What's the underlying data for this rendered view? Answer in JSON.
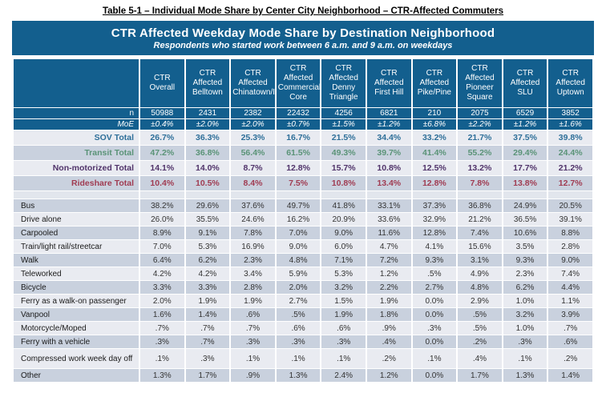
{
  "page_title": "Table 5-1 – Individual Mode Share by Center City Neighborhood – CTR-Affected Commuters",
  "banner": {
    "title": "CTR Affected Weekday Mode Share by Destination Neighborhood",
    "subtitle": "Respondents who started work between 6 a.m. and 9 a.m. on weekdays"
  },
  "colors": {
    "header_blue": "#135F8E",
    "row_light": "#E9EBF1",
    "row_dark": "#C9D1DE",
    "sov_total": "#2E6F99",
    "transit_total": "#5A9377",
    "non_motorized_total": "#50336A",
    "rideshare_total": "#A03C52"
  },
  "chart_data": {
    "type": "table",
    "columns": [
      "CTR Overall",
      "CTR Affected Belltown",
      "CTR Affected Chinatown/ID",
      "CTR Affected Commercial Core",
      "CTR Affected Denny Triangle",
      "CTR Affected First Hill",
      "CTR Affected Pike/Pine",
      "CTR Affected Pioneer Square",
      "CTR Affected SLU",
      "CTR Affected Uptown"
    ],
    "stat_rows": [
      {
        "label": "n",
        "values": [
          "50988",
          "2431",
          "2382",
          "22432",
          "4256",
          "6821",
          "210",
          "2075",
          "6529",
          "3852"
        ]
      },
      {
        "label": "MoE",
        "italic": true,
        "values": [
          "±0.4%",
          "±2.0%",
          "±2.0%",
          "±0.7%",
          "±1.5%",
          "±1.2%",
          "±6.8%",
          "±2.2%",
          "±1.2%",
          "±1.6%"
        ]
      }
    ],
    "total_rows": [
      {
        "label": "SOV Total",
        "color": "#2E6F99",
        "values": [
          "26.7%",
          "36.3%",
          "25.3%",
          "16.7%",
          "21.5%",
          "34.4%",
          "33.2%",
          "21.7%",
          "37.5%",
          "39.8%"
        ]
      },
      {
        "label": "Transit Total",
        "color": "#5A9377",
        "values": [
          "47.2%",
          "36.8%",
          "56.4%",
          "61.5%",
          "49.3%",
          "39.7%",
          "41.4%",
          "55.2%",
          "29.4%",
          "24.4%"
        ]
      },
      {
        "label": "Non-motorized Total",
        "color": "#50336A",
        "values": [
          "14.1%",
          "14.0%",
          "8.7%",
          "12.8%",
          "15.7%",
          "10.8%",
          "12.5%",
          "13.2%",
          "17.7%",
          "21.2%"
        ]
      },
      {
        "label": "Rideshare Total",
        "color": "#A03C52",
        "values": [
          "10.4%",
          "10.5%",
          "8.4%",
          "7.5%",
          "10.8%",
          "13.4%",
          "12.8%",
          "7.8%",
          "13.8%",
          "12.7%"
        ]
      }
    ],
    "mode_rows": [
      {
        "label": "Bus",
        "values": [
          "38.2%",
          "29.6%",
          "37.6%",
          "49.7%",
          "41.8%",
          "33.1%",
          "37.3%",
          "36.8%",
          "24.9%",
          "20.5%"
        ]
      },
      {
        "label": "Drive alone",
        "values": [
          "26.0%",
          "35.5%",
          "24.6%",
          "16.2%",
          "20.9%",
          "33.6%",
          "32.9%",
          "21.2%",
          "36.5%",
          "39.1%"
        ]
      },
      {
        "label": "Carpooled",
        "values": [
          "8.9%",
          "9.1%",
          "7.8%",
          "7.0%",
          "9.0%",
          "11.6%",
          "12.8%",
          "7.4%",
          "10.6%",
          "8.8%"
        ]
      },
      {
        "label": "Train/light rail/streetcar",
        "values": [
          "7.0%",
          "5.3%",
          "16.9%",
          "9.0%",
          "6.0%",
          "4.7%",
          "4.1%",
          "15.6%",
          "3.5%",
          "2.8%"
        ]
      },
      {
        "label": "Walk",
        "values": [
          "6.4%",
          "6.2%",
          "2.3%",
          "4.8%",
          "7.1%",
          "7.2%",
          "9.3%",
          "3.1%",
          "9.3%",
          "9.0%"
        ]
      },
      {
        "label": "Teleworked",
        "values": [
          "4.2%",
          "4.2%",
          "3.4%",
          "5.9%",
          "5.3%",
          "1.2%",
          ".5%",
          "4.9%",
          "2.3%",
          "7.4%"
        ]
      },
      {
        "label": "Bicycle",
        "values": [
          "3.3%",
          "3.3%",
          "2.8%",
          "2.0%",
          "3.2%",
          "2.2%",
          "2.7%",
          "4.8%",
          "6.2%",
          "4.4%"
        ]
      },
      {
        "label": "Ferry as a walk-on passenger",
        "values": [
          "2.0%",
          "1.9%",
          "1.9%",
          "2.7%",
          "1.5%",
          "1.9%",
          "0.0%",
          "2.9%",
          "1.0%",
          "1.1%"
        ]
      },
      {
        "label": "Vanpool",
        "values": [
          "1.6%",
          "1.4%",
          ".6%",
          ".5%",
          "1.9%",
          "1.8%",
          "0.0%",
          ".5%",
          "3.2%",
          "3.9%"
        ]
      },
      {
        "label": "Motorcycle/Moped",
        "values": [
          ".7%",
          ".7%",
          ".7%",
          ".6%",
          ".6%",
          ".9%",
          ".3%",
          ".5%",
          "1.0%",
          ".7%"
        ]
      },
      {
        "label": "Ferry with a vehicle",
        "values": [
          ".3%",
          ".7%",
          ".3%",
          ".3%",
          ".3%",
          ".4%",
          "0.0%",
          ".2%",
          ".3%",
          ".6%"
        ]
      },
      {
        "label": "Compressed work week day off",
        "row_height_hint": "tall",
        "values": [
          ".1%",
          ".3%",
          ".1%",
          ".1%",
          ".1%",
          ".2%",
          ".1%",
          ".4%",
          ".1%",
          ".2%"
        ]
      },
      {
        "label": "Other",
        "values": [
          "1.3%",
          "1.7%",
          ".9%",
          "1.3%",
          "2.4%",
          "1.2%",
          "0.0%",
          "1.7%",
          "1.3%",
          "1.4%"
        ]
      }
    ]
  }
}
